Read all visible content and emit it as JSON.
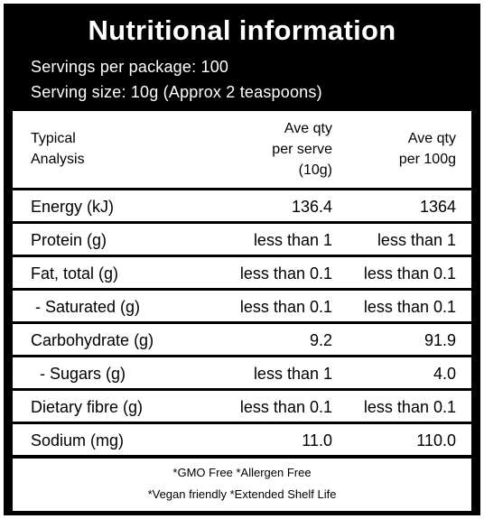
{
  "title": "Nutritional information",
  "servings_per_package": "Servings per package: 100",
  "serving_size": "Serving size: 10g (Approx 2 teaspoons)",
  "header": {
    "col1_line1": "Typical",
    "col1_line2": "Analysis",
    "col2_line1": "Ave qty",
    "col2_line2": "per serve",
    "col2_line3": "(10g)",
    "col3_line1": "Ave qty",
    "col3_line2": "per 100g"
  },
  "rows": [
    {
      "label": "Energy (kJ)",
      "per_serve": "136.4",
      "per_100g": "1364"
    },
    {
      "label": "Protein (g)",
      "per_serve": "less than 1",
      "per_100g": "less than 1"
    },
    {
      "label": "Fat, total (g)",
      "per_serve": "less than 0.1",
      "per_100g": "less than 0.1"
    },
    {
      "label": " - Saturated (g)",
      "per_serve": "less than 0.1",
      "per_100g": "less than 0.1"
    },
    {
      "label": "Carbohydrate (g)",
      "per_serve": "9.2",
      "per_100g": "91.9"
    },
    {
      "label": "  - Sugars (g)",
      "per_serve": "less than 1",
      "per_100g": "4.0"
    },
    {
      "label": "Dietary fibre (g)",
      "per_serve": "less than 0.1",
      "per_100g": "less than 0.1"
    },
    {
      "label": "Sodium (mg)",
      "per_serve": "11.0",
      "per_100g": "110.0"
    }
  ],
  "footer": {
    "line1": "*GMO Free *Allergen Free",
    "line2": "*Vegan friendly *Extended Shelf Life"
  }
}
